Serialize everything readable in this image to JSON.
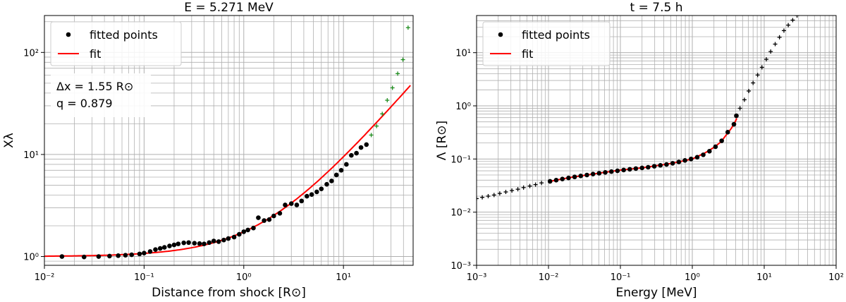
{
  "chart_data": [
    {
      "type": "scatter",
      "title": "E = 5.271 MeV",
      "xlabel": "Distance from shock [R⊙]",
      "ylabel": "Xλ",
      "xscale": "log",
      "yscale": "log",
      "xlim": [
        0.01,
        50
      ],
      "ylim": [
        0.82,
        230
      ],
      "xticks": [
        {
          "v": 0.01,
          "label": "10⁻²"
        },
        {
          "v": 0.1,
          "label": "10⁻¹"
        },
        {
          "v": 1,
          "label": "10⁰"
        },
        {
          "v": 10,
          "label": "10¹"
        }
      ],
      "yticks": [
        {
          "v": 1,
          "label": "10⁰"
        },
        {
          "v": 10,
          "label": "10¹"
        },
        {
          "v": 100,
          "label": "10²"
        }
      ],
      "grid": true,
      "legend_position": "top-left",
      "annotation": [
        "Δx = 1.55 R⊙",
        "q = 0.879"
      ],
      "series": [
        {
          "name": "fitted points",
          "kind": "points",
          "color": "#000000",
          "x": [
            0.015,
            0.025,
            0.035,
            0.045,
            0.055,
            0.065,
            0.075,
            0.09,
            0.1,
            0.115,
            0.13,
            0.145,
            0.16,
            0.18,
            0.2,
            0.22,
            0.25,
            0.28,
            0.32,
            0.36,
            0.4,
            0.45,
            0.5,
            0.56,
            0.63,
            0.7,
            0.8,
            0.9,
            1.0,
            1.1,
            1.25,
            1.4,
            1.6,
            1.8,
            2.0,
            2.3,
            2.6,
            3.0,
            3.4,
            3.8,
            4.3,
            4.8,
            5.4,
            6.0,
            6.8,
            7.6,
            8.5,
            9.5,
            10.7,
            12.0,
            13.5,
            15.0,
            17.0
          ],
          "y": [
            1.0,
            0.99,
            1.0,
            1.01,
            1.02,
            1.03,
            1.04,
            1.06,
            1.08,
            1.12,
            1.17,
            1.2,
            1.23,
            1.27,
            1.3,
            1.33,
            1.36,
            1.37,
            1.35,
            1.34,
            1.33,
            1.37,
            1.42,
            1.4,
            1.45,
            1.5,
            1.55,
            1.65,
            1.75,
            1.82,
            1.9,
            2.4,
            2.25,
            2.3,
            2.5,
            2.65,
            3.2,
            3.3,
            3.2,
            3.5,
            3.9,
            4.05,
            4.3,
            4.6,
            5.1,
            5.5,
            6.3,
            7.0,
            8.0,
            9.8,
            10.3,
            11.7,
            12.5
          ]
        },
        {
          "name": "",
          "kind": "plus",
          "color": "#1e8c1e",
          "x": [
            19.0,
            21.5,
            24.5,
            27.5,
            31.0,
            35.0,
            39.5,
            44.5
          ],
          "y": [
            15.5,
            19.0,
            25.0,
            34.0,
            45.0,
            62.0,
            85.0,
            175.0
          ]
        },
        {
          "name": "fit",
          "kind": "line",
          "color": "#ff0000",
          "fit": {
            "Dx": 1.55,
            "q": 0.879,
            "xmin": 0.01,
            "xmax": 47
          }
        }
      ]
    },
    {
      "type": "scatter",
      "title": "t = 7.5 h",
      "xlabel": "Energy [MeV]",
      "ylabel": "Λ [R⊙]",
      "xscale": "log",
      "yscale": "log",
      "xlim": [
        0.001,
        100
      ],
      "ylim": [
        0.001,
        50
      ],
      "xticks": [
        {
          "v": 0.001,
          "label": "10⁻³"
        },
        {
          "v": 0.01,
          "label": "10⁻²"
        },
        {
          "v": 0.1,
          "label": "10⁻¹"
        },
        {
          "v": 1,
          "label": "10⁰"
        },
        {
          "v": 10,
          "label": "10¹"
        },
        {
          "v": 100,
          "label": "10²"
        }
      ],
      "yticks": [
        {
          "v": 0.001,
          "label": "10⁻³"
        },
        {
          "v": 0.01,
          "label": "10⁻²"
        },
        {
          "v": 0.1,
          "label": "10⁻¹"
        },
        {
          "v": 1,
          "label": "10⁰"
        },
        {
          "v": 10,
          "label": "10¹"
        }
      ],
      "grid": true,
      "legend_position": "top-left",
      "series": [
        {
          "name": "fitted points",
          "kind": "points",
          "color": "#000000",
          "x": [
            0.0105,
            0.0128,
            0.0156,
            0.019,
            0.0231,
            0.0281,
            0.0342,
            0.0416,
            0.0506,
            0.0616,
            0.075,
            0.091,
            0.111,
            0.135,
            0.164,
            0.2,
            0.243,
            0.296,
            0.36,
            0.438,
            0.533,
            0.649,
            0.79,
            0.961,
            1.17,
            1.42,
            1.73,
            2.1,
            2.56,
            3.11,
            3.79,
            4.1
          ],
          "y": [
            0.038,
            0.04,
            0.042,
            0.044,
            0.046,
            0.048,
            0.05,
            0.052,
            0.054,
            0.056,
            0.058,
            0.06,
            0.062,
            0.064,
            0.066,
            0.068,
            0.07,
            0.073,
            0.076,
            0.079,
            0.083,
            0.088,
            0.094,
            0.1,
            0.108,
            0.12,
            0.14,
            0.17,
            0.22,
            0.32,
            0.45,
            0.65
          ]
        },
        {
          "name": "",
          "kind": "plus",
          "color": "#000000",
          "x": [
            0.001,
            0.0012,
            0.00145,
            0.00175,
            0.0021,
            0.00255,
            0.0031,
            0.00375,
            0.0045,
            0.0055,
            0.0066,
            0.008,
            4.6,
            5.3,
            6.1,
            7.0,
            8.1,
            9.3,
            10.7,
            12.3,
            14.2,
            16.3,
            18.8,
            21.6,
            24.9,
            28.6,
            33
          ],
          "y": [
            0.018,
            0.019,
            0.02,
            0.021,
            0.0225,
            0.024,
            0.0255,
            0.027,
            0.029,
            0.031,
            0.033,
            0.0355,
            0.9,
            1.3,
            1.9,
            2.7,
            3.8,
            5.3,
            7.5,
            10.5,
            14.5,
            19.5,
            26,
            33,
            41,
            50,
            58
          ]
        },
        {
          "name": "fit",
          "kind": "line",
          "color": "#ff0000",
          "x": [
            0.0105,
            0.02,
            0.05,
            0.1,
            0.2,
            0.5,
            1.0,
            1.5,
            2.0,
            2.5,
            3.0,
            3.5,
            4.0,
            4.15
          ],
          "y": [
            0.038,
            0.045,
            0.054,
            0.062,
            0.068,
            0.082,
            0.1,
            0.13,
            0.165,
            0.21,
            0.29,
            0.38,
            0.52,
            0.58
          ]
        }
      ]
    }
  ]
}
